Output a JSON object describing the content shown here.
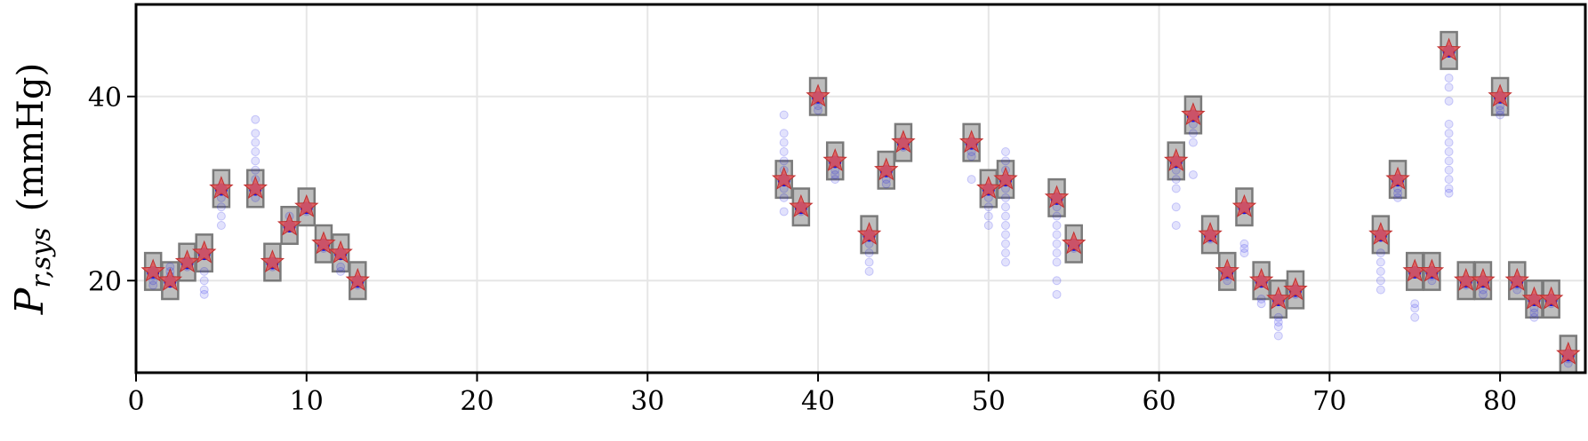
{
  "chart_data": {
    "type": "scatter",
    "title": "",
    "xlabel": "",
    "ylabel": "P_{r,sys} (mmHg)",
    "ylabel_parts": {
      "symbol": "P",
      "subscript": "r,sys",
      "unit": "(mmHg)"
    },
    "xlim": [
      0,
      85
    ],
    "ylim": [
      10,
      50
    ],
    "xticks": [
      0,
      10,
      20,
      30,
      40,
      50,
      60,
      70,
      80
    ],
    "yticks": [
      20,
      40
    ],
    "grid": true,
    "legend": "none",
    "colors": {
      "star": "#e05a5a",
      "star_edge": "#c03030",
      "box_fill": "#bdbdbd",
      "box_edge": "#7a7a7a",
      "dot": "#1010e8",
      "grid": "#e6e6e6"
    },
    "series": [
      {
        "marker": "star",
        "points": [
          [
            1,
            21
          ],
          [
            2,
            20
          ],
          [
            3,
            22
          ],
          [
            4,
            23
          ],
          [
            5,
            30
          ],
          [
            7,
            30
          ],
          [
            8,
            22
          ],
          [
            9,
            26
          ],
          [
            10,
            28
          ],
          [
            11,
            24
          ],
          [
            12,
            23
          ],
          [
            13,
            20
          ],
          [
            38,
            31
          ],
          [
            39,
            28
          ],
          [
            40,
            40
          ],
          [
            41,
            33
          ],
          [
            43,
            25
          ],
          [
            44,
            32
          ],
          [
            45,
            35
          ],
          [
            49,
            35
          ],
          [
            50,
            30
          ],
          [
            51,
            31
          ],
          [
            54,
            29
          ],
          [
            55,
            24
          ],
          [
            61,
            33
          ],
          [
            62,
            38
          ],
          [
            63,
            25
          ],
          [
            64,
            21
          ],
          [
            65,
            28
          ],
          [
            66,
            20
          ],
          [
            67,
            18
          ],
          [
            68,
            19
          ],
          [
            73,
            25
          ],
          [
            74,
            31
          ],
          [
            75,
            21
          ],
          [
            76,
            21
          ],
          [
            77,
            45
          ],
          [
            78,
            20
          ],
          [
            79,
            20
          ],
          [
            80,
            40
          ],
          [
            81,
            20
          ],
          [
            82,
            18
          ],
          [
            83,
            18
          ],
          [
            84,
            12
          ]
        ]
      },
      {
        "marker": "box",
        "boxes": [
          [
            1,
            19,
            23
          ],
          [
            2,
            18,
            22
          ],
          [
            3,
            20,
            24
          ],
          [
            4,
            21,
            25
          ],
          [
            5,
            28,
            32
          ],
          [
            7,
            28,
            32
          ],
          [
            8,
            20,
            24
          ],
          [
            9,
            24,
            28
          ],
          [
            10,
            26,
            30
          ],
          [
            11,
            22,
            26
          ],
          [
            12,
            21,
            25
          ],
          [
            13,
            18,
            22
          ],
          [
            38,
            29,
            33
          ],
          [
            39,
            26,
            30
          ],
          [
            40,
            38,
            42
          ],
          [
            41,
            31,
            35
          ],
          [
            43,
            23,
            27
          ],
          [
            44,
            30,
            34
          ],
          [
            45,
            33,
            37
          ],
          [
            49,
            33,
            37
          ],
          [
            50,
            28,
            32
          ],
          [
            51,
            29,
            33
          ],
          [
            54,
            27,
            31
          ],
          [
            55,
            22,
            26
          ],
          [
            61,
            31,
            35
          ],
          [
            62,
            36,
            40
          ],
          [
            63,
            23,
            27
          ],
          [
            64,
            19,
            23
          ],
          [
            65,
            26,
            30
          ],
          [
            66,
            18,
            22
          ],
          [
            67,
            16,
            20
          ],
          [
            68,
            17,
            21
          ],
          [
            73,
            23,
            27
          ],
          [
            74,
            29,
            33
          ],
          [
            75,
            19,
            23
          ],
          [
            76,
            19,
            23
          ],
          [
            77,
            43,
            47
          ],
          [
            78,
            18,
            22
          ],
          [
            79,
            18,
            22
          ],
          [
            80,
            38,
            42
          ],
          [
            81,
            18,
            22
          ],
          [
            82,
            16,
            20
          ],
          [
            83,
            16,
            20
          ],
          [
            84,
            10,
            14
          ]
        ]
      },
      {
        "marker": "dot",
        "points": [
          [
            1,
            20
          ],
          [
            1,
            19.5
          ],
          [
            1,
            20.5
          ],
          [
            2,
            21
          ],
          [
            2,
            20.5
          ],
          [
            2,
            21.5
          ],
          [
            3,
            22
          ],
          [
            3,
            21.5
          ],
          [
            4,
            21
          ],
          [
            4,
            20
          ],
          [
            4,
            19
          ],
          [
            4,
            18.5
          ],
          [
            5,
            30
          ],
          [
            5,
            29
          ],
          [
            5,
            28
          ],
          [
            5,
            27
          ],
          [
            5,
            26
          ],
          [
            7,
            30
          ],
          [
            7,
            29
          ],
          [
            7,
            31
          ],
          [
            7,
            32
          ],
          [
            7,
            33
          ],
          [
            7,
            34
          ],
          [
            7,
            35
          ],
          [
            7,
            36
          ],
          [
            7,
            37.5
          ],
          [
            8,
            22
          ],
          [
            8,
            21.5
          ],
          [
            9,
            27
          ],
          [
            9,
            26
          ],
          [
            10,
            28
          ],
          [
            10,
            27.5
          ],
          [
            11,
            24
          ],
          [
            11,
            23.5
          ],
          [
            12,
            21.5
          ],
          [
            12,
            21
          ],
          [
            13,
            20
          ],
          [
            13,
            19.5
          ],
          [
            38,
            30
          ],
          [
            38,
            29
          ],
          [
            38,
            31
          ],
          [
            38,
            32
          ],
          [
            38,
            33
          ],
          [
            38,
            34
          ],
          [
            38,
            35
          ],
          [
            38,
            36
          ],
          [
            38,
            38
          ],
          [
            38,
            27.5
          ],
          [
            39,
            28
          ],
          [
            39,
            27.5
          ],
          [
            40,
            40
          ],
          [
            40,
            39.5
          ],
          [
            40,
            39
          ],
          [
            40,
            38.5
          ],
          [
            41,
            32
          ],
          [
            41,
            31.5
          ],
          [
            41,
            31
          ],
          [
            43,
            24
          ],
          [
            43,
            23
          ],
          [
            43,
            22
          ],
          [
            43,
            21
          ],
          [
            44,
            31
          ],
          [
            44,
            30.5
          ],
          [
            45,
            35
          ],
          [
            45,
            34.5
          ],
          [
            49,
            34
          ],
          [
            49,
            33.5
          ],
          [
            49,
            31
          ],
          [
            50,
            29
          ],
          [
            50,
            28
          ],
          [
            50,
            27
          ],
          [
            50,
            26
          ],
          [
            51,
            30
          ],
          [
            51,
            29
          ],
          [
            51,
            28
          ],
          [
            51,
            27
          ],
          [
            51,
            26
          ],
          [
            51,
            25
          ],
          [
            51,
            24
          ],
          [
            51,
            23
          ],
          [
            51,
            22
          ],
          [
            51,
            32
          ],
          [
            51,
            33
          ],
          [
            51,
            34
          ],
          [
            54,
            28
          ],
          [
            54,
            27
          ],
          [
            54,
            26
          ],
          [
            54,
            25
          ],
          [
            54,
            24
          ],
          [
            54,
            23
          ],
          [
            54,
            22
          ],
          [
            54,
            20
          ],
          [
            54,
            18.5
          ],
          [
            55,
            24
          ],
          [
            55,
            23.5
          ],
          [
            61,
            32
          ],
          [
            61,
            31
          ],
          [
            61,
            30
          ],
          [
            61,
            28
          ],
          [
            61,
            26
          ],
          [
            62,
            37
          ],
          [
            62,
            36
          ],
          [
            62,
            35
          ],
          [
            62,
            31.5
          ],
          [
            63,
            25
          ],
          [
            63,
            24.5
          ],
          [
            64,
            20.5
          ],
          [
            64,
            20
          ],
          [
            65,
            24
          ],
          [
            65,
            23.5
          ],
          [
            65,
            23
          ],
          [
            66,
            18
          ],
          [
            66,
            17.5
          ],
          [
            67,
            16
          ],
          [
            67,
            15.5
          ],
          [
            67,
            15
          ],
          [
            67,
            14
          ],
          [
            68,
            19
          ],
          [
            68,
            18.5
          ],
          [
            73,
            23
          ],
          [
            73,
            22
          ],
          [
            73,
            21
          ],
          [
            73,
            20
          ],
          [
            73,
            19
          ],
          [
            74,
            30
          ],
          [
            74,
            29.5
          ],
          [
            74,
            29
          ],
          [
            75,
            17.5
          ],
          [
            75,
            17
          ],
          [
            75,
            16
          ],
          [
            76,
            20
          ],
          [
            76,
            20.5
          ],
          [
            77,
            30
          ],
          [
            77,
            31
          ],
          [
            77,
            32
          ],
          [
            77,
            33
          ],
          [
            77,
            34
          ],
          [
            77,
            35
          ],
          [
            77,
            36
          ],
          [
            77,
            37
          ],
          [
            77,
            39.5
          ],
          [
            77,
            41
          ],
          [
            77,
            42
          ],
          [
            77,
            29.5
          ],
          [
            78,
            20
          ],
          [
            78,
            19.5
          ],
          [
            79,
            19
          ],
          [
            79,
            18.5
          ],
          [
            80,
            39
          ],
          [
            80,
            38.5
          ],
          [
            80,
            38
          ],
          [
            81,
            19.5
          ],
          [
            81,
            19
          ],
          [
            82,
            17
          ],
          [
            82,
            16.5
          ],
          [
            82,
            16
          ],
          [
            83,
            18
          ],
          [
            83,
            17.5
          ],
          [
            84,
            11
          ],
          [
            84,
            11.5
          ]
        ]
      }
    ]
  }
}
